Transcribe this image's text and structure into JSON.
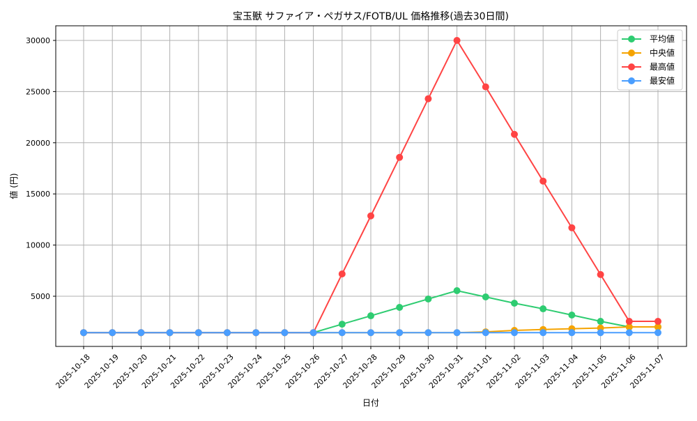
{
  "chart_data": {
    "type": "line",
    "title": "宝玉獣 サファイア・ペガサス/FOTB/UL 価格推移(過去30日間)",
    "xlabel": "日付",
    "ylabel": "値 (円)",
    "ylim": [
      95,
      31430
    ],
    "yticks": [
      5000,
      10000,
      15000,
      20000,
      25000,
      30000
    ],
    "grid": true,
    "legend_position": "top-right",
    "categories": [
      "2025-10-18",
      "2025-10-19",
      "2025-10-20",
      "2025-10-21",
      "2025-10-22",
      "2025-10-23",
      "2025-10-24",
      "2025-10-25",
      "2025-10-26",
      "2025-10-27",
      "2025-10-28",
      "2025-10-29",
      "2025-10-30",
      "2025-10-31",
      "2025-11-01",
      "2025-11-02",
      "2025-11-03",
      "2025-11-04",
      "2025-11-05",
      "2025-11-06",
      "2025-11-07"
    ],
    "series": [
      {
        "name": "平均値",
        "color": "#2ecc71",
        "values": [
          1440,
          1440,
          1440,
          1440,
          1440,
          1440,
          1440,
          1440,
          1440,
          2270,
          3090,
          3910,
          4730,
          5545,
          4930,
          4320,
          3770,
          3160,
          2545,
          2000,
          2000
        ]
      },
      {
        "name": "中央値",
        "color": "#f5a300",
        "values": [
          1440,
          1440,
          1440,
          1440,
          1440,
          1440,
          1440,
          1440,
          1440,
          1440,
          1440,
          1440,
          1440,
          1440,
          1520,
          1660,
          1750,
          1820,
          1890,
          2000,
          2000
        ]
      },
      {
        "name": "最高値",
        "color": "#ff4444",
        "values": [
          1440,
          1440,
          1440,
          1440,
          1440,
          1440,
          1440,
          1440,
          1440,
          7180,
          12850,
          18570,
          24300,
          30000,
          25460,
          20820,
          16250,
          11690,
          7120,
          2545,
          2545
        ]
      },
      {
        "name": "最安値",
        "color": "#4a9eff",
        "values": [
          1440,
          1440,
          1440,
          1440,
          1440,
          1440,
          1440,
          1440,
          1440,
          1440,
          1440,
          1440,
          1440,
          1440,
          1440,
          1440,
          1440,
          1440,
          1440,
          1440,
          1440
        ]
      }
    ]
  }
}
